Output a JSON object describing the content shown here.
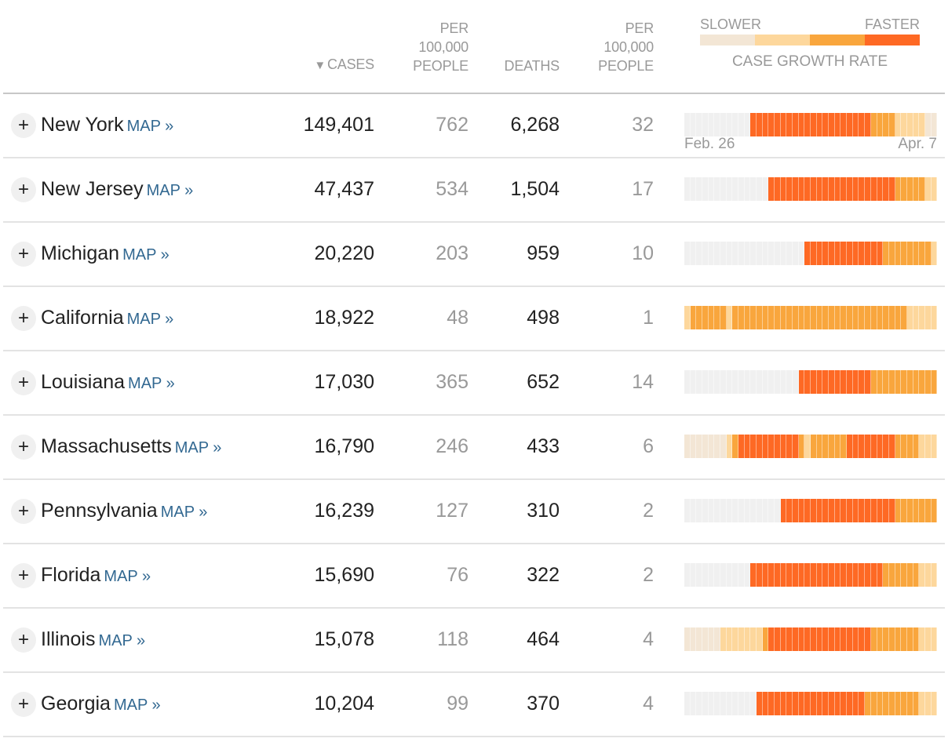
{
  "header": {
    "sort_arrow": "▼",
    "cases": "Cases",
    "per_100k_cases": [
      "Per",
      "100,000",
      "People"
    ],
    "deaths": "Deaths",
    "per_100k_deaths": [
      "Per",
      "100,000",
      "People"
    ],
    "legend": {
      "slower": "Slower",
      "faster": "Faster",
      "title": "Case growth rate",
      "levels": [
        "#f3e6d5",
        "#fdd79c",
        "#f9a63d",
        "#fe6924"
      ]
    }
  },
  "colors": {
    "none": "#f0f0f0",
    "levels": [
      "#f3e6d5",
      "#fdd79c",
      "#f9a63d",
      "#fe6924"
    ],
    "map_link": "#326891"
  },
  "date_range": {
    "start": "Feb. 26",
    "end": "Apr. 7",
    "days": 42
  },
  "map_link_label": "MAP »",
  "expand_label": "+",
  "rows": [
    {
      "state": "New York",
      "cases": "149,401",
      "cases_per_100k": "762",
      "deaths": "6,268",
      "deaths_per_100k": "32",
      "growth": [
        [
          -1,
          11
        ],
        [
          3,
          20
        ],
        [
          2,
          4
        ],
        [
          1,
          5
        ],
        [
          0,
          2
        ]
      ]
    },
    {
      "state": "New Jersey",
      "cases": "47,437",
      "cases_per_100k": "534",
      "deaths": "1,504",
      "deaths_per_100k": "17",
      "growth": [
        [
          -1,
          14
        ],
        [
          3,
          21
        ],
        [
          2,
          5
        ],
        [
          1,
          2
        ]
      ]
    },
    {
      "state": "Michigan",
      "cases": "20,220",
      "cases_per_100k": "203",
      "deaths": "959",
      "deaths_per_100k": "10",
      "growth": [
        [
          -1,
          20
        ],
        [
          3,
          13
        ],
        [
          2,
          8
        ],
        [
          1,
          1
        ]
      ]
    },
    {
      "state": "California",
      "cases": "18,922",
      "cases_per_100k": "48",
      "deaths": "498",
      "deaths_per_100k": "1",
      "growth": [
        [
          1,
          1
        ],
        [
          2,
          6
        ],
        [
          1,
          1
        ],
        [
          2,
          29
        ],
        [
          1,
          5
        ]
      ]
    },
    {
      "state": "Louisiana",
      "cases": "17,030",
      "cases_per_100k": "365",
      "deaths": "652",
      "deaths_per_100k": "14",
      "growth": [
        [
          -1,
          19
        ],
        [
          3,
          12
        ],
        [
          2,
          11
        ]
      ]
    },
    {
      "state": "Massachusetts",
      "cases": "16,790",
      "cases_per_100k": "246",
      "deaths": "433",
      "deaths_per_100k": "6",
      "growth": [
        [
          0,
          7
        ],
        [
          1,
          1
        ],
        [
          2,
          1
        ],
        [
          3,
          10
        ],
        [
          2,
          1
        ],
        [
          1,
          1
        ],
        [
          2,
          6
        ],
        [
          3,
          8
        ],
        [
          2,
          4
        ],
        [
          1,
          3
        ]
      ]
    },
    {
      "state": "Pennsylvania",
      "cases": "16,239",
      "cases_per_100k": "127",
      "deaths": "310",
      "deaths_per_100k": "2",
      "growth": [
        [
          -1,
          16
        ],
        [
          3,
          19
        ],
        [
          2,
          7
        ]
      ]
    },
    {
      "state": "Florida",
      "cases": "15,690",
      "cases_per_100k": "76",
      "deaths": "322",
      "deaths_per_100k": "2",
      "growth": [
        [
          -1,
          11
        ],
        [
          3,
          22
        ],
        [
          2,
          6
        ],
        [
          1,
          3
        ]
      ]
    },
    {
      "state": "Illinois",
      "cases": "15,078",
      "cases_per_100k": "118",
      "deaths": "464",
      "deaths_per_100k": "4",
      "growth": [
        [
          0,
          6
        ],
        [
          1,
          7
        ],
        [
          2,
          1
        ],
        [
          3,
          17
        ],
        [
          2,
          8
        ],
        [
          1,
          3
        ]
      ]
    },
    {
      "state": "Georgia",
      "cases": "10,204",
      "cases_per_100k": "99",
      "deaths": "370",
      "deaths_per_100k": "4",
      "growth": [
        [
          -1,
          12
        ],
        [
          3,
          18
        ],
        [
          2,
          9
        ],
        [
          1,
          3
        ]
      ]
    }
  ]
}
